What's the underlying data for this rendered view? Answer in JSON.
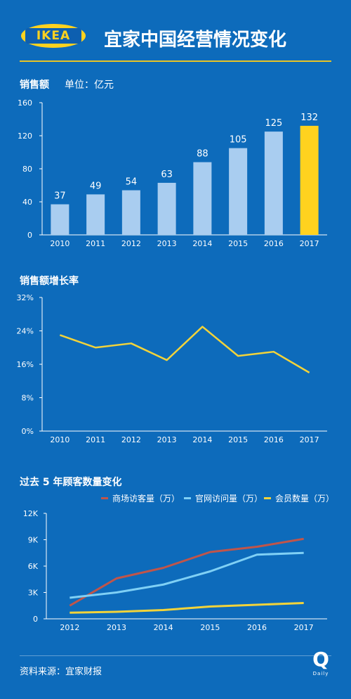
{
  "header": {
    "brand": "IKEA",
    "title": "宜家中国经营情况变化"
  },
  "sales": {
    "label": "销售额",
    "unit": "单位：亿元"
  },
  "growth": {
    "label": "销售额增长率"
  },
  "traffic": {
    "label": "过去 5 年顾客数量变化"
  },
  "footer": {
    "source": "资料来源：宜家财报",
    "badge_letter": "Q",
    "badge_text": "Daily"
  },
  "colors": {
    "background": "#0d6bbb",
    "bar": "#a9cdf0",
    "highlight_bar": "#ffd21f",
    "line_yellow": "#f2d33a",
    "line_red": "#c0554a",
    "line_lightblue": "#7fd0f5"
  },
  "chart_data": [
    {
      "type": "bar",
      "title": "销售额",
      "ylabel": "单位：亿元",
      "categories": [
        "2010",
        "2011",
        "2012",
        "2013",
        "2014",
        "2015",
        "2016",
        "2017"
      ],
      "values": [
        37,
        49,
        54,
        63,
        88,
        105,
        125,
        132
      ],
      "ylim": [
        0,
        160
      ],
      "yticks": [
        "0",
        "40",
        "80",
        "120",
        "160"
      ],
      "highlight": "2017",
      "grid": false
    },
    {
      "type": "line",
      "title": "销售额增长率",
      "categories": [
        "2010",
        "2011",
        "2012",
        "2013",
        "2014",
        "2015",
        "2016",
        "2017"
      ],
      "values": [
        23,
        20,
        21,
        17,
        25,
        18,
        19,
        14
      ],
      "ylim": [
        0,
        32
      ],
      "yticks": [
        "0%",
        "8%",
        "16%",
        "24%",
        "32%"
      ],
      "grid": false
    },
    {
      "type": "line",
      "title": "过去 5 年顾客数量变化",
      "categories": [
        "2012",
        "2013",
        "2014",
        "2015",
        "2016",
        "2017"
      ],
      "series": [
        {
          "name": "商场访客量（万）",
          "values": [
            1500,
            4600,
            5800,
            7600,
            8200,
            9100
          ]
        },
        {
          "name": "官网访问量（万）",
          "values": [
            2400,
            3000,
            3900,
            5400,
            7300,
            7500
          ]
        },
        {
          "name": "会员数量（万）",
          "values": [
            700,
            800,
            1000,
            1400,
            1600,
            1800
          ]
        }
      ],
      "ylim": [
        0,
        12000
      ],
      "yticks": [
        "0",
        "3K",
        "6K",
        "9K",
        "12K"
      ],
      "legend": "top",
      "grid": false
    }
  ]
}
